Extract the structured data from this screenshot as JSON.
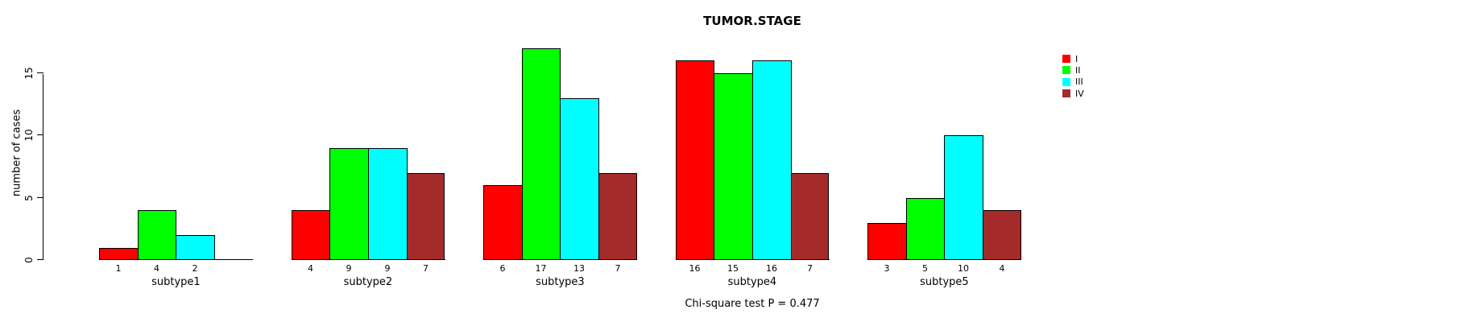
{
  "chart_data": {
    "type": "bar",
    "title": "TUMOR.STAGE",
    "xlabel": "",
    "ylabel": "number of cases",
    "ylim": [
      0,
      15
    ],
    "yticks": [
      0,
      5,
      10,
      15
    ],
    "grid": false,
    "legend_position": "right",
    "categories": [
      "subtype1",
      "subtype2",
      "subtype3",
      "subtype4",
      "subtype5"
    ],
    "series": [
      {
        "name": "I",
        "color": "#ff0000",
        "values": [
          1,
          4,
          6,
          16,
          3
        ]
      },
      {
        "name": "II",
        "color": "#00ff00",
        "values": [
          4,
          9,
          17,
          15,
          5
        ]
      },
      {
        "name": "III",
        "color": "#00ffff",
        "values": [
          2,
          9,
          13,
          16,
          10
        ]
      },
      {
        "name": "IV",
        "color": "#a52a2a",
        "values": [
          0,
          7,
          7,
          7,
          4
        ]
      }
    ],
    "bar_value_labels": "shown under baseline; zero values have no bar and no label",
    "annotation": "Chi-square test P = 0.477",
    "axis_color": "#000000",
    "background_color": "#ffffff"
  }
}
